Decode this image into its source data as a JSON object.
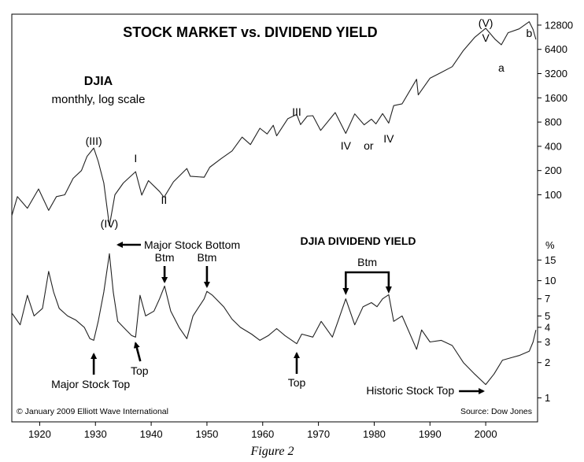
{
  "figure_caption": "Figure 2",
  "chart_data": {
    "type": "line",
    "title": "STOCK MARKET vs. DIVIDEND YIELD",
    "copyright": "© January 2009 Elliott Wave International",
    "source": "Source: Dow Jones",
    "x_ticks": [
      "1920",
      "1930",
      "1940",
      "1950",
      "1960",
      "1970",
      "1980",
      "1990",
      "2000"
    ],
    "xlim": [
      1915,
      2009.3
    ],
    "series": [
      {
        "name": "DJIA",
        "label": "DJIA",
        "sublabel": "monthly, log scale",
        "scale": "log",
        "unit": "",
        "y_ticks": [
          "12800",
          "6400",
          "3200",
          "1600",
          "800",
          "400",
          "200",
          "100"
        ],
        "ylim": [
          46,
          16000
        ],
        "points": [
          [
            1915.0,
            55
          ],
          [
            1916.0,
            95
          ],
          [
            1917.8,
            68
          ],
          [
            1919.8,
            118
          ],
          [
            1921.6,
            64
          ],
          [
            1923.0,
            95
          ],
          [
            1924.5,
            100
          ],
          [
            1926.0,
            160
          ],
          [
            1927.5,
            200
          ],
          [
            1928.5,
            300
          ],
          [
            1929.7,
            381
          ],
          [
            1930.5,
            260
          ],
          [
            1931.5,
            140
          ],
          [
            1932.5,
            41
          ],
          [
            1933.5,
            100
          ],
          [
            1935.0,
            140
          ],
          [
            1937.2,
            194
          ],
          [
            1938.3,
            99
          ],
          [
            1939.5,
            150
          ],
          [
            1941.5,
            110
          ],
          [
            1942.3,
            93
          ],
          [
            1944.0,
            145
          ],
          [
            1946.4,
            212
          ],
          [
            1947.0,
            170
          ],
          [
            1949.5,
            165
          ],
          [
            1950.5,
            220
          ],
          [
            1952.5,
            280
          ],
          [
            1954.5,
            350
          ],
          [
            1956.3,
            520
          ],
          [
            1957.8,
            420
          ],
          [
            1959.5,
            670
          ],
          [
            1960.8,
            570
          ],
          [
            1961.9,
            730
          ],
          [
            1962.5,
            540
          ],
          [
            1964.5,
            880
          ],
          [
            1966.1,
            995
          ],
          [
            1966.8,
            745
          ],
          [
            1968.0,
            950
          ],
          [
            1969.0,
            960
          ],
          [
            1970.4,
            630
          ],
          [
            1973.0,
            1050
          ],
          [
            1974.9,
            578
          ],
          [
            1976.5,
            1010
          ],
          [
            1978.2,
            740
          ],
          [
            1979.5,
            870
          ],
          [
            1980.3,
            760
          ],
          [
            1981.5,
            1020
          ],
          [
            1982.6,
            777
          ],
          [
            1983.5,
            1280
          ],
          [
            1985.0,
            1350
          ],
          [
            1987.6,
            2720
          ],
          [
            1987.9,
            1740
          ],
          [
            1990.0,
            2800
          ],
          [
            1992.0,
            3300
          ],
          [
            1994.0,
            3900
          ],
          [
            1996.0,
            6200
          ],
          [
            1998.0,
            9000
          ],
          [
            2000.0,
            11700
          ],
          [
            2001.7,
            8500
          ],
          [
            2002.8,
            7300
          ],
          [
            2004.0,
            10300
          ],
          [
            2006.0,
            11500
          ],
          [
            2007.8,
            14100
          ],
          [
            2008.5,
            11300
          ],
          [
            2009.0,
            8500
          ]
        ]
      },
      {
        "name": "DJIA DIVIDEND YIELD",
        "label": "DJIA DIVIDEND YIELD",
        "scale": "log",
        "unit": "%",
        "y_ticks": [
          "15",
          "10",
          "7",
          "5",
          "4",
          "3",
          "2",
          "1"
        ],
        "ylim": [
          0.8,
          28
        ],
        "points": [
          [
            1915.0,
            5.3
          ],
          [
            1916.5,
            4.2
          ],
          [
            1917.8,
            7.5
          ],
          [
            1919.0,
            5.0
          ],
          [
            1920.5,
            5.8
          ],
          [
            1921.6,
            12.0
          ],
          [
            1922.5,
            8.0
          ],
          [
            1923.5,
            5.8
          ],
          [
            1925.0,
            5.0
          ],
          [
            1926.5,
            4.6
          ],
          [
            1928.0,
            4.0
          ],
          [
            1929.0,
            3.2
          ],
          [
            1929.7,
            3.1
          ],
          [
            1930.5,
            4.5
          ],
          [
            1931.5,
            8.0
          ],
          [
            1932.5,
            17.0
          ],
          [
            1933.2,
            8.0
          ],
          [
            1934.0,
            4.5
          ],
          [
            1935.5,
            3.8
          ],
          [
            1936.5,
            3.4
          ],
          [
            1937.2,
            3.3
          ],
          [
            1938.0,
            7.5
          ],
          [
            1939.0,
            5.0
          ],
          [
            1940.5,
            5.5
          ],
          [
            1941.5,
            7.0
          ],
          [
            1942.4,
            9.0
          ],
          [
            1943.5,
            5.5
          ],
          [
            1945.0,
            4.0
          ],
          [
            1946.4,
            3.2
          ],
          [
            1947.5,
            5.0
          ],
          [
            1949.5,
            7.0
          ],
          [
            1950.0,
            8.1
          ],
          [
            1951.0,
            7.5
          ],
          [
            1953.0,
            6.0
          ],
          [
            1954.5,
            4.7
          ],
          [
            1956.0,
            4.0
          ],
          [
            1958.0,
            3.5
          ],
          [
            1959.5,
            3.1
          ],
          [
            1961.0,
            3.4
          ],
          [
            1962.5,
            3.9
          ],
          [
            1964.0,
            3.4
          ],
          [
            1966.1,
            2.9
          ],
          [
            1967.0,
            3.5
          ],
          [
            1969.0,
            3.3
          ],
          [
            1970.5,
            4.5
          ],
          [
            1972.5,
            3.3
          ],
          [
            1973.5,
            4.5
          ],
          [
            1974.9,
            7.0
          ],
          [
            1976.5,
            4.2
          ],
          [
            1978.0,
            6.0
          ],
          [
            1979.5,
            6.5
          ],
          [
            1980.5,
            6.0
          ],
          [
            1981.5,
            7.0
          ],
          [
            1982.6,
            7.6
          ],
          [
            1983.5,
            4.5
          ],
          [
            1985.0,
            5.0
          ],
          [
            1987.6,
            2.6
          ],
          [
            1988.5,
            3.8
          ],
          [
            1990.0,
            3.0
          ],
          [
            1992.0,
            3.1
          ],
          [
            1994.0,
            2.8
          ],
          [
            1996.0,
            2.0
          ],
          [
            1998.0,
            1.6
          ],
          [
            2000.0,
            1.3
          ],
          [
            2001.5,
            1.6
          ],
          [
            2003.0,
            2.1
          ],
          [
            2004.5,
            2.2
          ],
          [
            2006.0,
            2.3
          ],
          [
            2007.8,
            2.5
          ],
          [
            2008.5,
            3.0
          ],
          [
            2009.0,
            3.8
          ]
        ]
      }
    ],
    "wave_labels": [
      {
        "text": "(III)",
        "series": 0,
        "x": 1929.7
      },
      {
        "text": "(IV)",
        "series": 0,
        "x": 1932.5
      },
      {
        "text": "I",
        "series": 0,
        "x": 1937.2
      },
      {
        "text": "II",
        "series": 0,
        "x": 1942.3
      },
      {
        "text": "III",
        "series": 0,
        "x": 1966.1
      },
      {
        "text": "IV",
        "series": 0,
        "x": 1974.9
      },
      {
        "text": "or",
        "series": 0,
        "x": 1979.0
      },
      {
        "text": "IV",
        "series": 0,
        "x": 1982.6
      },
      {
        "text": "(V)",
        "series": 0,
        "x": 2000.0
      },
      {
        "text": "V",
        "series": 0,
        "x": 2000.0
      },
      {
        "text": "a",
        "series": 0,
        "x": 2002.8
      },
      {
        "text": "b",
        "series": 0,
        "x": 2007.8
      }
    ],
    "annotations": [
      {
        "text": "Major Stock Bottom",
        "series": 1,
        "x": 1932.5
      },
      {
        "text": "Btm",
        "series": 1,
        "x": 1942.4
      },
      {
        "text": "Btm",
        "series": 1,
        "x": 1950.0
      },
      {
        "text": "Btm",
        "series": 1,
        "x": [
          1974.9,
          1982.6
        ]
      },
      {
        "text": "Major Stock Top",
        "series": 1,
        "x": 1929.7
      },
      {
        "text": "Top",
        "series": 1,
        "x": 1937.2
      },
      {
        "text": "Top",
        "series": 1,
        "x": 1966.1
      },
      {
        "text": "Historic Stock Top",
        "series": 1,
        "x": 2000.0
      }
    ],
    "grid": false
  }
}
